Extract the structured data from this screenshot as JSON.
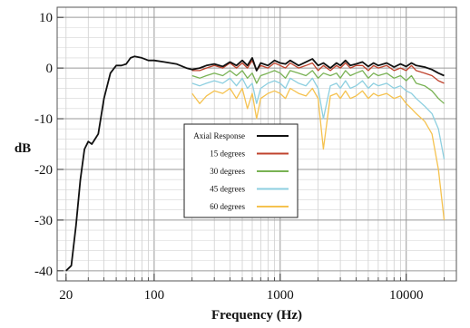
{
  "chart_data": {
    "type": "line",
    "xlabel": "Frequency (Hz)",
    "ylabel": "dB",
    "xscale": "log",
    "xlim": [
      17,
      25000
    ],
    "ylim": [
      -42,
      12
    ],
    "x_ticks": [
      20,
      100,
      1000,
      10000
    ],
    "x_tick_labels": [
      "20",
      "100",
      "1000",
      "10000"
    ],
    "y_ticks": [
      10,
      0,
      -10,
      -20,
      -30,
      -40
    ],
    "y_tick_labels": [
      "10",
      "0",
      "-10",
      "-20",
      "-30",
      "-40"
    ],
    "grid": true,
    "legend_position": "center",
    "series": [
      {
        "name": "Axial Response",
        "color": "#111111",
        "x": [
          20,
          22,
          24,
          26,
          28,
          30,
          32,
          34,
          36,
          40,
          45,
          50,
          55,
          60,
          65,
          70,
          80,
          90,
          100,
          120,
          150,
          180,
          200,
          230,
          260,
          300,
          350,
          400,
          450,
          500,
          550,
          600,
          650,
          700,
          800,
          900,
          1000,
          1100,
          1200,
          1400,
          1600,
          1800,
          2000,
          2200,
          2500,
          2800,
          3000,
          3300,
          3600,
          4000,
          4500,
          5000,
          5500,
          6000,
          7000,
          8000,
          9000,
          10000,
          11000,
          12000,
          14000,
          16000,
          18000,
          20000
        ],
        "values": [
          -40,
          -39,
          -31,
          -22,
          -16,
          -14.5,
          -15,
          -14,
          -13,
          -6,
          -1,
          0.5,
          0.5,
          0.8,
          2,
          2.3,
          2,
          1.5,
          1.5,
          1.2,
          0.8,
          0,
          -0.3,
          0,
          0.5,
          0.8,
          0.3,
          1.2,
          0.5,
          1.5,
          0.5,
          2,
          -0.5,
          1,
          0.5,
          1.5,
          1,
          0.8,
          1.5,
          0.5,
          1.2,
          1.8,
          0.5,
          1,
          0,
          1,
          0.5,
          1.5,
          0.5,
          0.8,
          1.2,
          0.3,
          1,
          0.5,
          1,
          0.2,
          0.8,
          0.3,
          1,
          0.5,
          0.2,
          -0.3,
          -1,
          -1.5
        ]
      },
      {
        "name": "15 degrees",
        "color": "#c0442e",
        "x": [
          200,
          230,
          260,
          300,
          350,
          400,
          450,
          500,
          550,
          600,
          650,
          700,
          800,
          900,
          1000,
          1100,
          1200,
          1400,
          1600,
          1800,
          2000,
          2200,
          2500,
          2800,
          3000,
          3300,
          3600,
          4000,
          4500,
          5000,
          5500,
          6000,
          7000,
          8000,
          9000,
          10000,
          11000,
          12000,
          14000,
          16000,
          18000,
          20000
        ],
        "values": [
          -0.5,
          -0.5,
          0,
          0.5,
          0,
          1,
          0,
          1,
          0,
          1.5,
          -0.5,
          0.5,
          0,
          1,
          0.5,
          0,
          1,
          0,
          0.5,
          1,
          -0.5,
          0.5,
          -0.5,
          0.5,
          0,
          1,
          0,
          0.5,
          0.5,
          -0.5,
          0.5,
          0,
          0.5,
          -0.5,
          0,
          -0.5,
          0.5,
          -0.5,
          -1,
          -1.5,
          -2.5,
          -3
        ]
      },
      {
        "name": "30 degrees",
        "color": "#79b254",
        "x": [
          200,
          230,
          260,
          300,
          350,
          400,
          450,
          500,
          550,
          600,
          650,
          700,
          800,
          900,
          1000,
          1100,
          1200,
          1400,
          1600,
          1800,
          2000,
          2200,
          2500,
          2800,
          3000,
          3300,
          3600,
          4000,
          4500,
          5000,
          5500,
          6000,
          7000,
          8000,
          9000,
          10000,
          11000,
          12000,
          14000,
          16000,
          18000,
          20000
        ],
        "values": [
          -1.5,
          -2,
          -1.5,
          -1,
          -1.5,
          -0.5,
          -1.5,
          -0.5,
          -2,
          -1,
          -3,
          -1.5,
          -1,
          -0.5,
          -1,
          -2,
          -0.5,
          -1,
          -1.5,
          -0.5,
          -2,
          -1,
          -1.5,
          -1,
          -2,
          -0.5,
          -1.5,
          -1,
          -0.5,
          -2,
          -1,
          -1.5,
          -1,
          -2,
          -1.5,
          -2.5,
          -1.5,
          -3,
          -3.5,
          -4.5,
          -6,
          -7
        ]
      },
      {
        "name": "45 degrees",
        "color": "#8dcfe0",
        "x": [
          200,
          230,
          260,
          300,
          350,
          400,
          450,
          500,
          550,
          600,
          650,
          700,
          800,
          900,
          1000,
          1100,
          1200,
          1400,
          1600,
          1800,
          2000,
          2200,
          2500,
          2800,
          3000,
          3300,
          3600,
          4000,
          4500,
          5000,
          5500,
          6000,
          7000,
          8000,
          9000,
          10000,
          11000,
          12000,
          14000,
          16000,
          18000,
          20000
        ],
        "values": [
          -3,
          -3.5,
          -3,
          -2.5,
          -3,
          -2,
          -3.5,
          -2,
          -4,
          -3,
          -7,
          -4,
          -3,
          -2.5,
          -3,
          -4,
          -2,
          -3,
          -3.5,
          -2,
          -4,
          -10,
          -3.5,
          -3,
          -4,
          -2.5,
          -4,
          -3.5,
          -2.5,
          -4,
          -3,
          -3.5,
          -3,
          -4,
          -3.5,
          -4.5,
          -5,
          -6,
          -7.5,
          -9,
          -12,
          -18
        ]
      },
      {
        "name": "60 degrees",
        "color": "#f5c24f",
        "x": [
          200,
          230,
          260,
          300,
          350,
          400,
          450,
          500,
          550,
          600,
          650,
          700,
          800,
          900,
          1000,
          1100,
          1200,
          1400,
          1600,
          1800,
          2000,
          2200,
          2500,
          2800,
          3000,
          3300,
          3600,
          4000,
          4500,
          5000,
          5500,
          6000,
          7000,
          8000,
          9000,
          10000,
          11000,
          12000,
          14000,
          16000,
          18000,
          20000
        ],
        "values": [
          -5,
          -7,
          -5.5,
          -4.5,
          -5,
          -4,
          -6,
          -4,
          -8,
          -5,
          -10,
          -6,
          -5,
          -4.5,
          -5,
          -6,
          -4,
          -5,
          -5.5,
          -4,
          -6,
          -16,
          -5.5,
          -5,
          -6,
          -4.5,
          -6,
          -5.5,
          -4.5,
          -6,
          -5,
          -5.5,
          -5,
          -6,
          -5.5,
          -7,
          -8,
          -9,
          -10.5,
          -13,
          -20,
          -30
        ]
      }
    ]
  }
}
